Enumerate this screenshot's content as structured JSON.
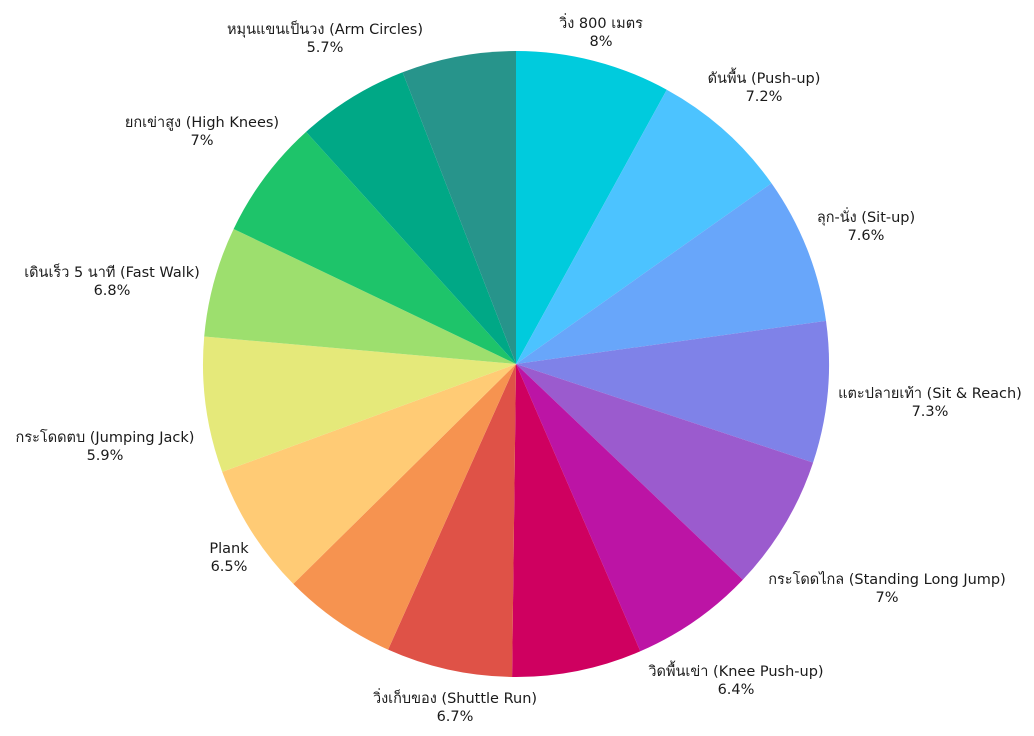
{
  "chart_data": {
    "type": "pie",
    "start_angle": "12 o'clock",
    "direction": "clockwise",
    "legend": "none",
    "slices": [
      {
        "name": "วิ่ง 800 เมตร",
        "value": 8,
        "label": "8%",
        "color": "#00CBDD"
      },
      {
        "name": "ดันพื้น (Push-up)",
        "value": 7.2,
        "label": "7.2%",
        "color": "#4CC3FF"
      },
      {
        "name": "ลุก-นั่ง (Sit-up)",
        "value": 7.6,
        "label": "7.6%",
        "color": "#68A6FA"
      },
      {
        "name": "แตะปลายเท้า (Sit & Reach)",
        "value": 7.3,
        "label": "7.3%",
        "color": "#7F82E8"
      },
      {
        "name": "กระโดดไกล (Standing Long Jump)",
        "value": 7,
        "label": "7%",
        "color": "#9B5BCE"
      },
      {
        "name": "วิดพื้นเข่า (Knee Push-up)",
        "value": 6.4,
        "label": "6.4%",
        "color": "#BC14A5"
      },
      {
        "name": "วิ่งเก็บของ (Shuttle Run)",
        "value": 6.7,
        "label": "6.7%",
        "color": "#CF0060"
      },
      {
        "name": "Plank",
        "value": 6.5,
        "label": "6.5%",
        "color": "#DF5247"
      },
      {
        "name": "กระโดดตบ (Jumping Jack)",
        "value": 5.9,
        "label": "5.9%",
        "color": "#F69350"
      },
      {
        "name": "เดินเร็ว 5 นาที (Fast Walk)",
        "value": 6.8,
        "label": "6.8%",
        "color": "#FFCB75"
      },
      {
        "name": "ยกเข่าสูง (High Knees)",
        "value": 7,
        "label": "7%",
        "color": "#E5E97A"
      },
      {
        "name": "หมุนแขนเป็นวง (Arm Circles)",
        "value": 5.7,
        "label": "5.7%",
        "color": "#9DDF6E"
      },
      {
        "name": "",
        "value": 6.2,
        "label": "",
        "color": "#1EC46A"
      },
      {
        "name": "",
        "value": 5.8,
        "label": "",
        "color": "#00A886"
      },
      {
        "name": "",
        "value": 5.9,
        "label": "",
        "color": "#27948B"
      }
    ],
    "label_order_clockwise": [
      {
        "name": "วิ่ง 800 เมตร",
        "label": "8%"
      },
      {
        "name": "ดันพื้น (Push-up)",
        "label": "7.2%"
      },
      {
        "name": "ลุก-นั่ง (Sit-up)",
        "label": "7.6%"
      },
      {
        "name": "แตะปลายเท้า (Sit & Reach)",
        "label": "7.3%"
      },
      {
        "name": "กระโดดไกล (Standing Long Jump)",
        "label": "7%"
      },
      {
        "name": "วิดพื้นเข่า (Knee Push-up)",
        "label": "6.4%"
      },
      {
        "name": "วิ่งเก็บของ (Shuttle Run)",
        "label": "6.7%"
      },
      {
        "name": "Plank",
        "label": "6.5%"
      },
      {
        "name": "กระโดดตบ (Jumping Jack)",
        "label": "5.9%"
      },
      {
        "name": "เดินเร็ว 5 นาที (Fast Walk)",
        "label": "6.8%"
      },
      {
        "name": "ยกเข่าสูง (High Knees)",
        "label": "7%"
      },
      {
        "name": "หมุนแขนเป็นวง (Arm Circles)",
        "label": "5.7%"
      }
    ]
  }
}
